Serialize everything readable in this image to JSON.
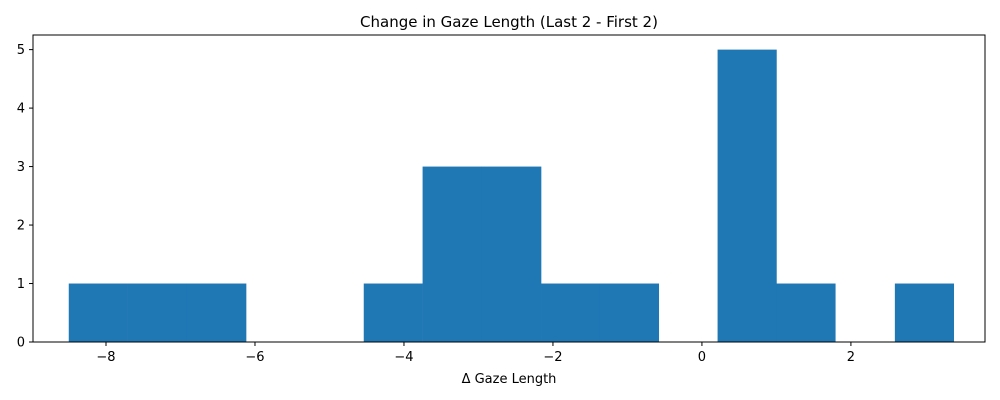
{
  "chart_data": {
    "type": "bar",
    "title": "Change in Gaze Length (Last 2 - First 2)",
    "xlabel": "Δ Gaze Length",
    "ylabel": "",
    "xlim": [
      -8.98,
      3.8
    ],
    "ylim": [
      0,
      5.25
    ],
    "xticks": [
      -8,
      -6,
      -4,
      -2,
      0,
      2
    ],
    "yticks": [
      0,
      1,
      2,
      3,
      4,
      5
    ],
    "grid": false,
    "bar_color": "#1f77b4",
    "bins": [
      {
        "x0": -8.5,
        "x1": -7.71,
        "count": 1
      },
      {
        "x0": -7.71,
        "x1": -6.92,
        "count": 1
      },
      {
        "x0": -6.92,
        "x1": -6.12,
        "count": 1
      },
      {
        "x0": -6.12,
        "x1": -5.33,
        "count": 0
      },
      {
        "x0": -5.33,
        "x1": -4.54,
        "count": 0
      },
      {
        "x0": -4.54,
        "x1": -3.75,
        "count": 1
      },
      {
        "x0": -3.75,
        "x1": -2.96,
        "count": 3
      },
      {
        "x0": -2.96,
        "x1": -2.16,
        "count": 3
      },
      {
        "x0": -2.16,
        "x1": -1.37,
        "count": 1
      },
      {
        "x0": -1.37,
        "x1": -0.58,
        "count": 1
      },
      {
        "x0": -0.58,
        "x1": 0.21,
        "count": 0
      },
      {
        "x0": 0.21,
        "x1": 1.0,
        "count": 5
      },
      {
        "x0": 1.0,
        "x1": 1.79,
        "count": 1
      },
      {
        "x0": 1.79,
        "x1": 2.59,
        "count": 0
      },
      {
        "x0": 2.59,
        "x1": 3.38,
        "count": 1
      }
    ]
  }
}
